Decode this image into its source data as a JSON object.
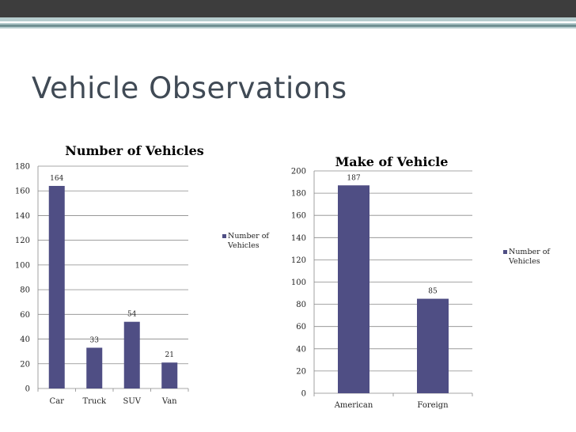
{
  "slide": {
    "title": "Vehicle Observations"
  },
  "colors": {
    "bar": "#4f4e84",
    "grid": "#8a8a8a",
    "header": "#3d3d3d",
    "accent": "#b7cdcf"
  },
  "chart_data": [
    {
      "type": "bar",
      "title": "Number of Vehicles",
      "categories": [
        "Car",
        "Truck",
        "SUV",
        "Van"
      ],
      "series": [
        {
          "name": "Number of Vehicles",
          "values": [
            164,
            33,
            54,
            21
          ]
        }
      ],
      "ylim": [
        0,
        180
      ],
      "yticks": [
        0,
        20,
        40,
        60,
        80,
        100,
        120,
        140,
        160,
        180
      ],
      "grid": true,
      "legend": "right",
      "legend_lines": [
        "Number of",
        "Vehicles"
      ]
    },
    {
      "type": "bar",
      "title": "Make of Vehicle",
      "categories": [
        "American",
        "Foreign"
      ],
      "series": [
        {
          "name": "Number of Vehicles",
          "values": [
            187,
            85
          ]
        }
      ],
      "ylim": [
        0,
        200
      ],
      "yticks": [
        0,
        20,
        40,
        60,
        80,
        100,
        120,
        140,
        160,
        180,
        200
      ],
      "grid": true,
      "legend": "right",
      "legend_lines": [
        "Number of",
        "Vehicles"
      ]
    }
  ]
}
